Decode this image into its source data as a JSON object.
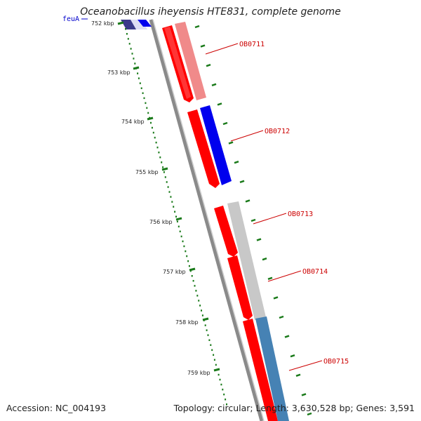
{
  "title": "Oceanobacillus iheyensis HTE831, complete genome",
  "footer": {
    "accession": "Accession: NC_004193",
    "summary": "Topology: circular; Length: 3,630,528 bp; Genes: 3,591"
  },
  "edge_label": "feuA",
  "ticks": [
    "752 kbp",
    "753 kbp",
    "754 kbp",
    "755 kbp",
    "756 kbp",
    "757 kbp",
    "758 kbp",
    "759 kbp"
  ],
  "genes": [
    {
      "label": "OB0711"
    },
    {
      "label": "OB0712"
    },
    {
      "label": "OB0713"
    },
    {
      "label": "OB0714"
    },
    {
      "label": "OB0715"
    }
  ],
  "colors": {
    "forward_cds": "#ff0000",
    "reverse_cds": "#0000ee",
    "light_cds": "#f08a8a",
    "gray_track": "#c8c8c8",
    "steel_track": "#4682b4",
    "navy_track": "#3a3a8a",
    "backbone": "#888888",
    "tick_green": "#1a7a1a"
  }
}
